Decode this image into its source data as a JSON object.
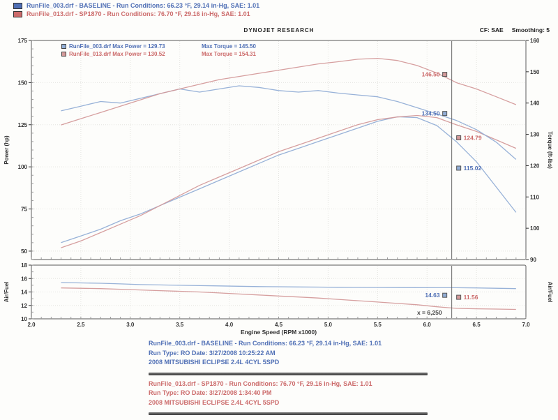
{
  "header": {
    "brand": "DYNOJET RESEARCH",
    "cf_label": "CF: SAE",
    "smoothing_label": "Smoothing: 5",
    "runs": [
      {
        "text": "RunFile_003.drf - BASELINE  -  Run Conditions: 66.23 °F, 29.14 in-Hg, SAE: 1.01"
      },
      {
        "text": "RunFile_013.drf - SP1870  -  Run Conditions: 76.70 °F, 29.16 in-Hg, SAE: 1.01"
      }
    ]
  },
  "legend": {
    "rows": [
      {
        "left": "RunFile_003.drf Max Power = 129.73",
        "right": "Max Torque = 145.50"
      },
      {
        "left": "RunFile_013.drf Max Power = 130.52",
        "right": "Max Torque = 154.31"
      }
    ]
  },
  "footer": {
    "baseline": {
      "lines": [
        "RunFile_003.drf - BASELINE  -  Run Conditions: 66.23 °F, 29.14 in-Hg, SAE: 1.01",
        "Run Type: RO  Date: 3/27/2008 10:25:22 AM",
        "2008 MITSUBISHI ECLIPSE 2.4L 4CYL 5SPD"
      ]
    },
    "modified": {
      "lines": [
        "RunFile_013.drf - SP1870  -  Run Conditions: 76.70 °F, 29.16 in-Hg, SAE: 1.01",
        "Run Type: RO  Date: 3/27/2008 1:34:40 PM",
        "2008 MITSUBISHI ECLIPSE 2.4L 4CYL 5SPD"
      ]
    }
  },
  "colors": {
    "baseline_curve": "#92aed6",
    "modified_curve": "#d49a9a",
    "baseline_text": "#4f6fb5",
    "modified_text": "#cc6b6b",
    "cursor_line": "#666666",
    "grid": "#e4e4e0",
    "axis_text": "#333333",
    "panel_border": "#787878"
  },
  "chart_data": [
    {
      "type": "line",
      "title": "Power and Torque vs Engine Speed",
      "xlabel": "Engine Speed (RPM x1000)",
      "ylabel_left": "Power (hp)",
      "ylabel_right": "Torque (ft-lbs)",
      "xlim": [
        2.0,
        7.0
      ],
      "x_ticks": [
        2.0,
        2.5,
        3.0,
        3.5,
        4.0,
        4.5,
        5.0,
        5.5,
        6.0,
        6.5,
        7.0
      ],
      "x_minor_step": 0.1,
      "left_ylim": [
        45,
        175
      ],
      "left_ticks": [
        175,
        150,
        125,
        100,
        75,
        50
      ],
      "left_minor_step": 5,
      "right_ylim": [
        90,
        160
      ],
      "right_ticks": [
        160,
        150,
        140,
        130,
        120,
        110,
        100,
        90
      ],
      "grid": true,
      "legend_position": "top-left",
      "cursor_rpm": 6.25,
      "x": [
        2.3,
        2.5,
        2.7,
        2.9,
        3.1,
        3.3,
        3.5,
        3.7,
        3.9,
        4.1,
        4.3,
        4.5,
        4.7,
        4.9,
        5.1,
        5.3,
        5.5,
        5.7,
        5.9,
        6.1,
        6.3,
        6.5,
        6.7,
        6.9
      ],
      "series": [
        {
          "name": "baseline-power",
          "run": "BASELINE",
          "axis": "left",
          "color_key": "baseline_curve",
          "text_key": "baseline_text",
          "max_value": 129.73,
          "cursor_label": "115.02",
          "label_side": "right",
          "label_at": 98,
          "values": [
            55,
            59,
            63,
            68,
            72,
            77,
            82,
            87,
            92,
            97,
            102,
            107,
            111,
            115,
            119,
            123,
            127,
            129.7,
            129.2,
            124.5,
            114.8,
            103,
            88,
            73
          ]
        },
        {
          "name": "sp1870-power",
          "run": "SP1870",
          "axis": "left",
          "color_key": "modified_curve",
          "text_key": "modified_text",
          "max_value": 130.52,
          "cursor_label": "124.79",
          "label_side": "right",
          "label_at": 116,
          "values": [
            52,
            56,
            61,
            66,
            71,
            77,
            83,
            89,
            94,
            99,
            104,
            109,
            113,
            117,
            121,
            125,
            128,
            129.6,
            130.5,
            129.2,
            124.9,
            121,
            116,
            111
          ]
        },
        {
          "name": "baseline-torque",
          "run": "BASELINE",
          "axis": "right",
          "color_key": "baseline_curve",
          "text_key": "baseline_text",
          "max_value": 145.5,
          "cursor_label": "134.50",
          "label_side": "left",
          "label_at": 136,
          "values": [
            137.5,
            139,
            140.5,
            140,
            141.5,
            143,
            144.5,
            143.5,
            144.5,
            145.5,
            145,
            144,
            143.5,
            144,
            143.2,
            142.6,
            142,
            140.5,
            138.5,
            136.5,
            134.4,
            131.5,
            127.5,
            122
          ]
        },
        {
          "name": "sp1870-torque",
          "run": "SP1870",
          "axis": "right",
          "color_key": "modified_curve",
          "text_key": "modified_text",
          "max_value": 154.31,
          "cursor_label": "146.50",
          "label_side": "left",
          "label_at": 148.5,
          "values": [
            133,
            135,
            137,
            139,
            141,
            143,
            144.5,
            146,
            147.5,
            148.5,
            149.5,
            150.5,
            151.5,
            152.5,
            153.2,
            154,
            154.3,
            153.6,
            152,
            149.6,
            146.5,
            144.5,
            142,
            139.5
          ]
        }
      ]
    },
    {
      "type": "line",
      "title": "Air/Fuel ratio vs Engine Speed",
      "ylabel_left": "Air/Fuel",
      "ylabel_right": "Air/Fuel",
      "xlim": [
        2.0,
        7.0
      ],
      "x_minor_step": 0.1,
      "left_ylim": [
        10,
        18
      ],
      "left_ticks": [
        18,
        16,
        14,
        12,
        10
      ],
      "left_minor_step": 1,
      "grid": true,
      "cursor_rpm": 6.25,
      "cursor_rpm_label": "x = 6,250",
      "x": [
        2.3,
        2.5,
        2.7,
        2.9,
        3.1,
        3.3,
        3.5,
        3.7,
        3.9,
        4.1,
        4.3,
        4.5,
        4.7,
        4.9,
        5.1,
        5.3,
        5.5,
        5.7,
        5.9,
        6.1,
        6.3,
        6.5,
        6.7,
        6.9
      ],
      "series": [
        {
          "name": "baseline-afr",
          "run": "BASELINE",
          "color_key": "baseline_curve",
          "text_key": "baseline_text",
          "cursor_label": "14.63",
          "label_side": "left",
          "label_at": 13.2,
          "values": [
            15.4,
            15.35,
            15.3,
            15.2,
            15.1,
            15.05,
            15,
            14.95,
            14.9,
            14.85,
            14.8,
            14.78,
            14.75,
            14.73,
            14.7,
            14.68,
            14.66,
            14.65,
            14.64,
            14.63,
            14.63,
            14.6,
            14.55,
            14.5
          ]
        },
        {
          "name": "sp1870-afr",
          "run": "SP1870",
          "color_key": "modified_curve",
          "text_key": "modified_text",
          "cursor_label": "11.56",
          "label_side": "right",
          "label_at": 12.9,
          "values": [
            14.6,
            14.55,
            14.5,
            14.4,
            14.3,
            14.2,
            14.1,
            14,
            13.85,
            13.7,
            13.55,
            13.4,
            13.25,
            13.1,
            12.9,
            12.7,
            12.5,
            12.3,
            12.1,
            11.8,
            11.56,
            11.5,
            11.45,
            11.4
          ]
        }
      ]
    }
  ]
}
